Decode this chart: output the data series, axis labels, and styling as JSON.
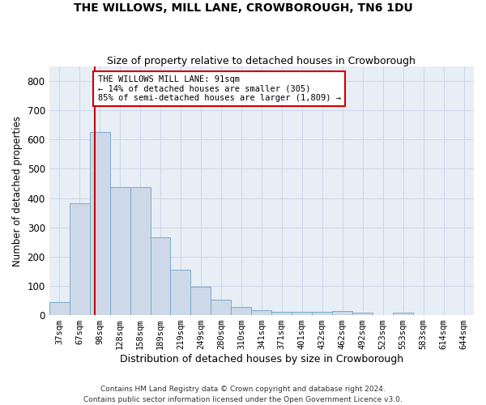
{
  "title": "THE WILLOWS, MILL LANE, CROWBOROUGH, TN6 1DU",
  "subtitle": "Size of property relative to detached houses in Crowborough",
  "xlabel": "Distribution of detached houses by size in Crowborough",
  "ylabel": "Number of detached properties",
  "footnote": "Contains HM Land Registry data © Crown copyright and database right 2024.\nContains public sector information licensed under the Open Government Licence v3.0.",
  "bar_color": "#cdd9e8",
  "bar_edge_color": "#7aaac8",
  "bar_width": 1.0,
  "categories": [
    "37sqm",
    "67sqm",
    "98sqm",
    "128sqm",
    "158sqm",
    "189sqm",
    "219sqm",
    "249sqm",
    "280sqm",
    "310sqm",
    "341sqm",
    "371sqm",
    "401sqm",
    "432sqm",
    "462sqm",
    "492sqm",
    "523sqm",
    "553sqm",
    "583sqm",
    "614sqm",
    "644sqm"
  ],
  "values": [
    45,
    382,
    625,
    438,
    438,
    265,
    155,
    96,
    52,
    28,
    18,
    12,
    12,
    12,
    15,
    8,
    0,
    8,
    0,
    0,
    0
  ],
  "ylim": [
    0,
    850
  ],
  "yticks": [
    0,
    100,
    200,
    300,
    400,
    500,
    600,
    700,
    800
  ],
  "property_line_x": 1.75,
  "annotation_text": "THE WILLOWS MILL LANE: 91sqm\n← 14% of detached houses are smaller (305)\n85% of semi-detached houses are larger (1,809) →",
  "annotation_box_color": "#ffffff",
  "annotation_border_color": "#cc0000",
  "vline_color": "#cc0000",
  "grid_color": "#ccd6e8",
  "plot_bg_color": "#e8eef6",
  "title_fontsize": 10,
  "subtitle_fontsize": 9,
  "ylabel_fontsize": 8.5,
  "xlabel_fontsize": 9,
  "tick_fontsize": 7.5,
  "annot_fontsize": 7.5,
  "footnote_fontsize": 6.5
}
